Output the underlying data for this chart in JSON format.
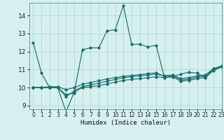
{
  "xlabel": "Humidex (Indice chaleur)",
  "background_color": "#d6f0f0",
  "grid_color": "#b8dada",
  "line_color": "#1a6e6a",
  "xlim": [
    -0.5,
    23
  ],
  "ylim": [
    8.8,
    14.7
  ],
  "yticks": [
    9,
    10,
    11,
    12,
    13,
    14
  ],
  "xticks": [
    0,
    1,
    2,
    3,
    4,
    5,
    6,
    7,
    8,
    9,
    10,
    11,
    12,
    13,
    14,
    15,
    16,
    17,
    18,
    19,
    20,
    21,
    22,
    23
  ],
  "series": [
    [
      12.5,
      10.8,
      10.0,
      10.0,
      9.6,
      9.7,
      12.1,
      12.2,
      12.2,
      13.15,
      13.2,
      14.55,
      12.4,
      12.4,
      12.25,
      12.35,
      10.55,
      10.6,
      10.75,
      10.85,
      10.8,
      10.55,
      11.0,
      11.15
    ],
    [
      10.0,
      10.0,
      10.0,
      10.0,
      8.65,
      9.75,
      10.0,
      10.05,
      10.1,
      10.2,
      10.3,
      10.4,
      10.45,
      10.5,
      10.55,
      10.6,
      10.55,
      10.6,
      10.35,
      10.4,
      10.5,
      10.55,
      10.95,
      11.15
    ],
    [
      10.0,
      10.0,
      10.0,
      10.0,
      9.5,
      9.8,
      10.05,
      10.15,
      10.25,
      10.35,
      10.45,
      10.55,
      10.6,
      10.65,
      10.7,
      10.75,
      10.65,
      10.7,
      10.5,
      10.55,
      10.65,
      10.7,
      11.05,
      11.2
    ],
    [
      10.0,
      10.0,
      10.05,
      10.05,
      9.88,
      10.0,
      10.18,
      10.28,
      10.38,
      10.48,
      10.55,
      10.62,
      10.67,
      10.72,
      10.77,
      10.82,
      10.62,
      10.67,
      10.42,
      10.47,
      10.58,
      10.64,
      11.05,
      11.18
    ]
  ]
}
